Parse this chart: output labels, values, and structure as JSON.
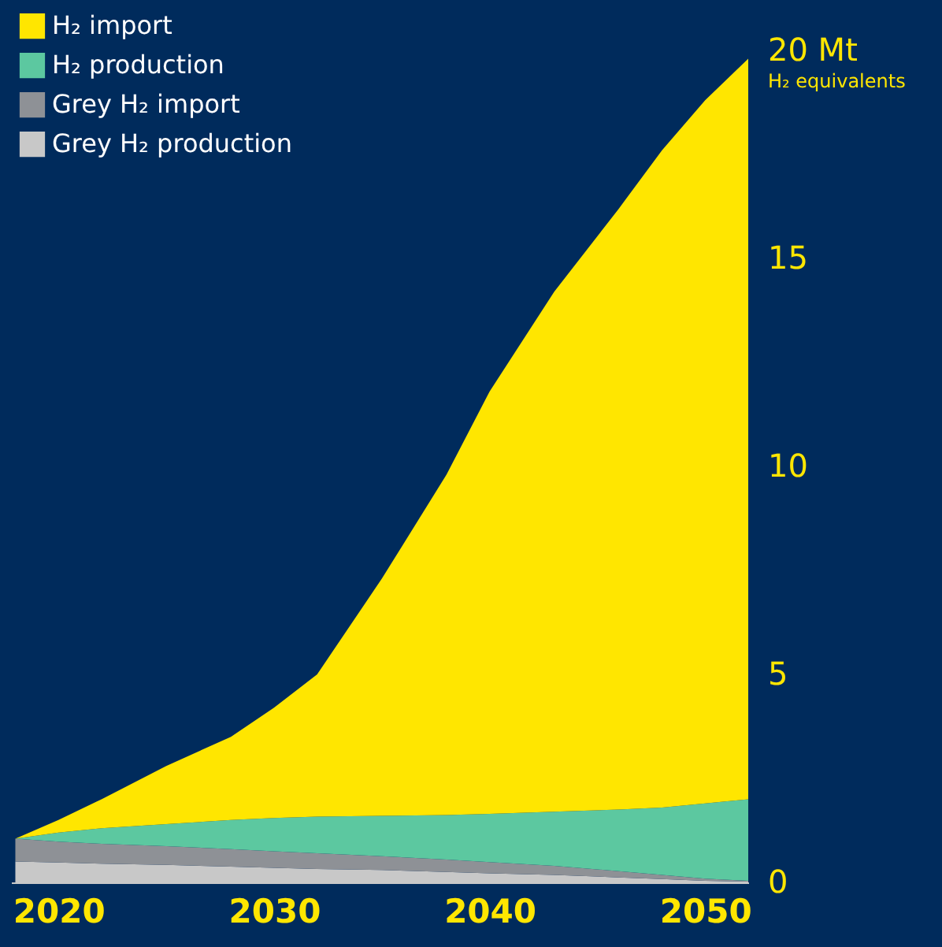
{
  "chart_data": {
    "type": "area",
    "stacked": true,
    "ylabel": "H₂ equivalents",
    "x": [
      2018,
      2020,
      2022,
      2025,
      2028,
      2030,
      2032,
      2035,
      2038,
      2040,
      2043,
      2046,
      2048,
      2050,
      2052
    ],
    "series": [
      {
        "name": "Grey H₂ production",
        "color": "#c8c8c8",
        "values": [
          0.5,
          0.48,
          0.45,
          0.42,
          0.38,
          0.35,
          0.32,
          0.3,
          0.25,
          0.22,
          0.18,
          0.12,
          0.08,
          0.04,
          0.02
        ]
      },
      {
        "name": "Grey H₂ import",
        "color": "#8e9196",
        "values": [
          0.55,
          0.5,
          0.48,
          0.45,
          0.42,
          0.4,
          0.38,
          0.33,
          0.3,
          0.27,
          0.22,
          0.15,
          0.1,
          0.05,
          0.02
        ]
      },
      {
        "name": "H₂ production",
        "color": "#5cc8a0",
        "values": [
          0,
          0.22,
          0.37,
          0.53,
          0.7,
          0.8,
          0.88,
          0.97,
          1.07,
          1.16,
          1.3,
          1.48,
          1.62,
          1.81,
          1.96
        ]
      },
      {
        "name": "H₂ import",
        "color": "#ffe600",
        "values": [
          0,
          0.3,
          0.7,
          1.4,
          2.0,
          2.65,
          3.42,
          5.7,
          8.18,
          10.15,
          12.5,
          14.45,
          15.8,
          16.9,
          17.8
        ]
      }
    ],
    "xlim": [
      2017.8,
      2052
    ],
    "xticks": [
      2020,
      2030,
      2040,
      2050
    ],
    "ylim": [
      0,
      20
    ],
    "yticks": [
      0,
      5,
      10,
      15,
      {
        "value": 20,
        "label": "20 Mt"
      }
    ],
    "grid": false,
    "legend": "top left"
  }
}
